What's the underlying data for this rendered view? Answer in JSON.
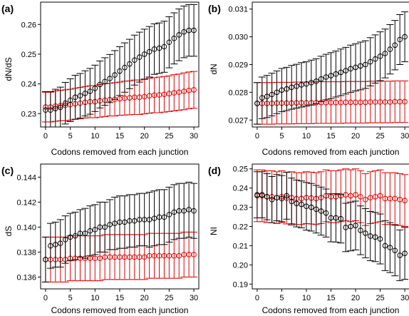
{
  "chart_data": [
    {
      "type": "scatter",
      "panel_label": "(a)",
      "xlabel": "Codons removed from each junction",
      "ylabel": "dN/dS",
      "xlim": [
        -1,
        31
      ],
      "ylim": [
        0.2255,
        0.2675
      ],
      "xticks": [
        0,
        5,
        10,
        15,
        20,
        25,
        30
      ],
      "yticks": [
        0.23,
        0.24,
        0.25,
        0.26
      ],
      "ytick_labels": [
        "0.23",
        "0.24",
        "0.25",
        "0.26"
      ],
      "x": [
        0,
        1,
        2,
        3,
        4,
        5,
        6,
        7,
        8,
        9,
        10,
        11,
        12,
        13,
        14,
        15,
        16,
        17,
        18,
        19,
        20,
        21,
        22,
        23,
        24,
        25,
        26,
        27,
        28,
        29,
        30
      ],
      "series": [
        {
          "color": "#000000",
          "values": [
            0.2312,
            0.2312,
            0.2317,
            0.2321,
            0.2335,
            0.2345,
            0.2355,
            0.236,
            0.2368,
            0.2375,
            0.2385,
            0.2398,
            0.2408,
            0.2418,
            0.243,
            0.2443,
            0.2455,
            0.2467,
            0.248,
            0.249,
            0.25,
            0.2508,
            0.2517,
            0.252,
            0.2525,
            0.254,
            0.2553,
            0.2565,
            0.2575,
            0.258,
            0.258
          ],
          "err": [
            0.0062,
            0.0062,
            0.0065,
            0.0068,
            0.007,
            0.0072,
            0.0074,
            0.0075,
            0.0076,
            0.0077,
            0.0078,
            0.0079,
            0.008,
            0.0081,
            0.0082,
            0.0082,
            0.0083,
            0.0083,
            0.0084,
            0.0084,
            0.0084,
            0.0085,
            0.0085,
            0.0085,
            0.0086,
            0.0086,
            0.0086,
            0.0087,
            0.0087,
            0.0087,
            0.0087
          ]
        },
        {
          "color": "#e00000",
          "values": [
            0.2322,
            0.2322,
            0.2325,
            0.2327,
            0.2328,
            0.233,
            0.2333,
            0.2335,
            0.2338,
            0.234,
            0.234,
            0.2343,
            0.2345,
            0.2347,
            0.2348,
            0.235,
            0.2352,
            0.2353,
            0.2355,
            0.2355,
            0.2357,
            0.236,
            0.2362,
            0.2363,
            0.2365,
            0.2367,
            0.237,
            0.2372,
            0.2375,
            0.2378,
            0.238
          ],
          "err": [
            0.005,
            0.005,
            0.0051,
            0.0051,
            0.0052,
            0.0052,
            0.0052,
            0.0053,
            0.0053,
            0.0054,
            0.0054,
            0.0055,
            0.0055,
            0.0055,
            0.0056,
            0.0056,
            0.0057,
            0.0057,
            0.0058,
            0.0058,
            0.0058,
            0.0059,
            0.0059,
            0.006,
            0.006,
            0.006,
            0.0061,
            0.0061,
            0.0062,
            0.0062,
            0.0062
          ]
        }
      ]
    },
    {
      "type": "scatter",
      "panel_label": "(b)",
      "xlabel": "Codons removed from each junction",
      "ylabel": "dN",
      "xlim": [
        -1,
        31
      ],
      "ylim": [
        0.02675,
        0.03125
      ],
      "xticks": [
        0,
        5,
        10,
        15,
        20,
        25,
        30
      ],
      "yticks": [
        0.027,
        0.028,
        0.029,
        0.03,
        0.031
      ],
      "ytick_labels": [
        "0.027",
        "0.028",
        "0.029",
        "0.030",
        "0.031"
      ],
      "x": [
        0,
        1,
        2,
        3,
        4,
        5,
        6,
        7,
        8,
        9,
        10,
        11,
        12,
        13,
        14,
        15,
        16,
        17,
        18,
        19,
        20,
        21,
        22,
        23,
        24,
        25,
        26,
        27,
        28,
        29,
        30
      ],
      "series": [
        {
          "color": "#000000",
          "values": [
            0.0276,
            0.0278,
            0.02785,
            0.02792,
            0.028,
            0.02808,
            0.02812,
            0.02818,
            0.02822,
            0.02827,
            0.0283,
            0.02835,
            0.0284,
            0.02848,
            0.02855,
            0.0286,
            0.02866,
            0.02872,
            0.02878,
            0.02885,
            0.0289,
            0.02895,
            0.029,
            0.0291,
            0.0292,
            0.0293,
            0.0294,
            0.02955,
            0.0297,
            0.0299,
            0.03
          ],
          "err": [
            0.00075,
            0.00075,
            0.00076,
            0.00077,
            0.00077,
            0.00078,
            0.00078,
            0.00079,
            0.00079,
            0.0008,
            0.0008,
            0.00081,
            0.00081,
            0.00082,
            0.00082,
            0.00083,
            0.00083,
            0.00084,
            0.00084,
            0.00085,
            0.00085,
            0.00086,
            0.00086,
            0.00087,
            0.00087,
            0.00088,
            0.00088,
            0.00089,
            0.00089,
            0.0009,
            0.0009
          ]
        },
        {
          "color": "#e00000",
          "values": [
            0.0276,
            0.0276,
            0.0276,
            0.0276,
            0.02761,
            0.02761,
            0.02761,
            0.02761,
            0.02762,
            0.02762,
            0.02762,
            0.02762,
            0.02763,
            0.02763,
            0.02763,
            0.02763,
            0.02763,
            0.02763,
            0.02764,
            0.02764,
            0.02764,
            0.02764,
            0.02764,
            0.02765,
            0.02765,
            0.02765,
            0.02765,
            0.02765,
            0.02766,
            0.02766,
            0.02766
          ],
          "err": [
            0.00075,
            0.00075,
            0.00075,
            0.00075,
            0.00075,
            0.00075,
            0.00075,
            0.00075,
            0.00075,
            0.00075,
            0.00075,
            0.00075,
            0.00075,
            0.00075,
            0.00075,
            0.00075,
            0.00075,
            0.00075,
            0.00075,
            0.00075,
            0.00075,
            0.00075,
            0.00075,
            0.00075,
            0.00075,
            0.00075,
            0.00075,
            0.00075,
            0.00075,
            0.00075,
            0.00075
          ]
        }
      ]
    },
    {
      "type": "scatter",
      "panel_label": "(c)",
      "xlabel": "Codons removed from each junction",
      "ylabel": "dS",
      "xlim": [
        -1,
        31
      ],
      "ylim": [
        0.13505,
        0.14505
      ],
      "xticks": [
        0,
        5,
        10,
        15,
        20,
        25,
        30
      ],
      "yticks": [
        0.136,
        0.138,
        0.14,
        0.142,
        0.144
      ],
      "ytick_labels": [
        "0.136",
        "0.138",
        "0.140",
        "0.142",
        "0.144"
      ],
      "x": [
        0,
        1,
        2,
        3,
        4,
        5,
        6,
        7,
        8,
        9,
        10,
        11,
        12,
        13,
        14,
        15,
        16,
        17,
        18,
        19,
        20,
        21,
        22,
        23,
        24,
        25,
        26,
        27,
        28,
        29,
        30
      ],
      "series": [
        {
          "color": "#000000",
          "values": [
            0.1374,
            0.1385,
            0.1386,
            0.1387,
            0.139,
            0.1392,
            0.1393,
            0.1395,
            0.1395,
            0.1397,
            0.1398,
            0.14,
            0.14,
            0.1402,
            0.1403,
            0.1404,
            0.1404,
            0.1405,
            0.1405,
            0.1406,
            0.1406,
            0.1406,
            0.1407,
            0.1408,
            0.1408,
            0.141,
            0.1412,
            0.1413,
            0.1413,
            0.1414,
            0.1413
          ],
          "err": [
            0.0018,
            0.0018,
            0.0018,
            0.0019,
            0.0019,
            0.0019,
            0.0019,
            0.0019,
            0.002,
            0.002,
            0.002,
            0.002,
            0.002,
            0.002,
            0.0021,
            0.0021,
            0.0021,
            0.0021,
            0.0021,
            0.0021,
            0.0021,
            0.0022,
            0.0022,
            0.0022,
            0.0022,
            0.0022,
            0.0022,
            0.0022,
            0.0022,
            0.0022,
            0.0022
          ]
        },
        {
          "color": "#e00000",
          "values": [
            0.1374,
            0.1374,
            0.1374,
            0.1374,
            0.1374,
            0.1375,
            0.1375,
            0.1375,
            0.1375,
            0.1375,
            0.1375,
            0.1375,
            0.1376,
            0.1376,
            0.1376,
            0.1376,
            0.1376,
            0.1376,
            0.1376,
            0.1376,
            0.1376,
            0.1377,
            0.1377,
            0.1377,
            0.1377,
            0.1377,
            0.1377,
            0.1377,
            0.1378,
            0.1378,
            0.1378
          ],
          "err": [
            0.0018,
            0.0018,
            0.0018,
            0.0018,
            0.0018,
            0.0018,
            0.0018,
            0.0018,
            0.0018,
            0.0018,
            0.0018,
            0.0018,
            0.0018,
            0.0018,
            0.0018,
            0.0018,
            0.0018,
            0.0018,
            0.0018,
            0.0018,
            0.0018,
            0.0018,
            0.0018,
            0.0018,
            0.0018,
            0.0018,
            0.0018,
            0.0018,
            0.0018,
            0.0018,
            0.0018
          ]
        }
      ]
    },
    {
      "type": "scatter",
      "panel_label": "(d)",
      "xlabel": "Codons removed from each junction",
      "ylabel": "NI",
      "xlim": [
        -1,
        31
      ],
      "ylim": [
        0.1875,
        0.2525
      ],
      "xticks": [
        0,
        5,
        10,
        15,
        20,
        25,
        30
      ],
      "yticks": [
        0.19,
        0.2,
        0.21,
        0.22,
        0.23,
        0.24,
        0.25
      ],
      "ytick_labels": [
        "0.19",
        "0.20",
        "0.21",
        "0.22",
        "0.23",
        "0.24",
        "0.25"
      ],
      "x": [
        0,
        1,
        2,
        3,
        4,
        5,
        6,
        7,
        8,
        9,
        10,
        11,
        12,
        13,
        14,
        15,
        16,
        17,
        18,
        19,
        20,
        21,
        22,
        23,
        24,
        25,
        26,
        27,
        28,
        29,
        30
      ],
      "series": [
        {
          "color": "#000000",
          "values": [
            0.2365,
            0.2365,
            0.2355,
            0.234,
            0.235,
            0.2345,
            0.236,
            0.233,
            0.232,
            0.2315,
            0.2305,
            0.23,
            0.229,
            0.228,
            0.227,
            0.2245,
            0.2245,
            0.224,
            0.2195,
            0.22,
            0.2205,
            0.218,
            0.2165,
            0.215,
            0.2145,
            0.2135,
            0.21,
            0.209,
            0.2075,
            0.205,
            0.206
          ],
          "err": [
            0.012,
            0.012,
            0.012,
            0.012,
            0.012,
            0.012,
            0.0122,
            0.0122,
            0.0122,
            0.0122,
            0.0124,
            0.0124,
            0.0124,
            0.0125,
            0.0125,
            0.0125,
            0.0126,
            0.0126,
            0.0126,
            0.0127,
            0.0127,
            0.0127,
            0.0128,
            0.0128,
            0.0128,
            0.013,
            0.013,
            0.013,
            0.0132,
            0.0132,
            0.0135
          ]
        },
        {
          "color": "#e00000",
          "values": [
            0.236,
            0.236,
            0.2355,
            0.2355,
            0.235,
            0.2355,
            0.2348,
            0.235,
            0.2345,
            0.2345,
            0.235,
            0.2348,
            0.2345,
            0.235,
            0.236,
            0.2355,
            0.2355,
            0.236,
            0.2365,
            0.236,
            0.2365,
            0.2355,
            0.234,
            0.235,
            0.2355,
            0.236,
            0.2345,
            0.2345,
            0.2345,
            0.234,
            0.2335
          ],
          "err": [
            0.0135,
            0.0135,
            0.0135,
            0.0135,
            0.0135,
            0.0135,
            0.0135,
            0.0135,
            0.0135,
            0.0135,
            0.0135,
            0.0135,
            0.0135,
            0.0135,
            0.0135,
            0.0135,
            0.0135,
            0.0135,
            0.0135,
            0.0135,
            0.0135,
            0.0135,
            0.0135,
            0.0135,
            0.0135,
            0.0135,
            0.0135,
            0.0135,
            0.0135,
            0.0135,
            0.0135
          ]
        }
      ]
    }
  ]
}
